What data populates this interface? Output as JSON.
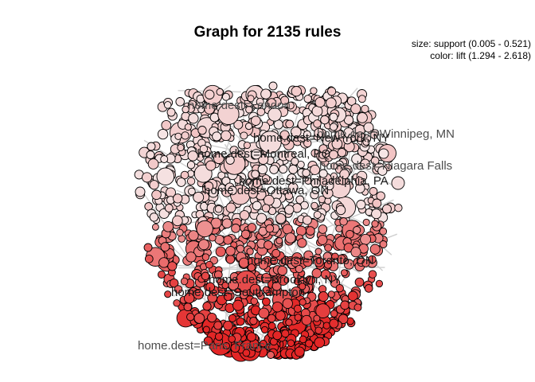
{
  "chart_data": {
    "type": "network",
    "title": "Graph for 2135 rules",
    "rule_count": 2135,
    "legend": {
      "size": "size: support (0.005 - 0.521)",
      "color": "color: lift (1.294 - 2.618)",
      "placement": "top-right"
    },
    "support_range": [
      0.005,
      0.521
    ],
    "lift_range": [
      1.294,
      2.618
    ],
    "color_scale": {
      "low": "#f5e6e6",
      "high": "#e32626"
    },
    "item_labels": [
      "home.dest=London",
      "home.dest=Winnipeg, MN",
      "home.dest=Niagara Falls",
      "home.dest=Paris, France"
    ],
    "overlapping_labels": [
      "home.dest=Montreal, PQ",
      "home.dest=New York, NY",
      "home.dest=Ottawa, ON",
      "home.dest=Philadelphia, PA",
      "home.dest=Toronto, ON",
      "home.dest=Southampton",
      "home.dest=Brooklyn, NY"
    ]
  }
}
